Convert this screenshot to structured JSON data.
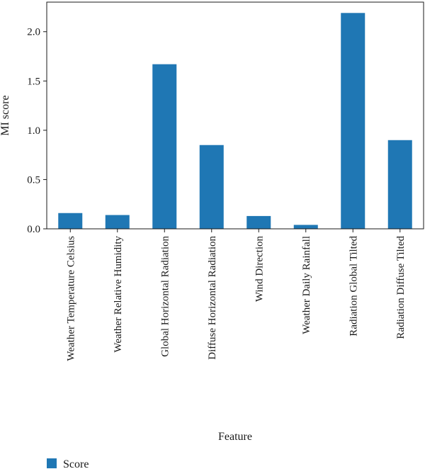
{
  "chart_data": {
    "type": "bar",
    "categories": [
      "Weather Temperature Celsius",
      "Weather Relative Humidity",
      "Global Horizontal Radiation",
      "Diffuse Horizontal Radiation",
      "Wind Direction",
      "Weather Daily Rainfall",
      "Radiation Global Tilted",
      "Radiation Diffuse Tilted"
    ],
    "series": [
      {
        "name": "Score",
        "color": "#1f77b4",
        "values": [
          0.16,
          0.14,
          1.67,
          0.85,
          0.13,
          0.04,
          2.19,
          0.9
        ]
      }
    ],
    "xlabel": "Feature",
    "ylabel": "MI score",
    "yticks": [
      0.0,
      0.5,
      1.0,
      1.5,
      2.0
    ],
    "ytick_labels": [
      "0.0",
      "0.5",
      "1.0",
      "1.5",
      "2.0"
    ],
    "ylim": [
      0,
      2.3
    ],
    "grid": false,
    "legend_position": "bottom-left"
  }
}
